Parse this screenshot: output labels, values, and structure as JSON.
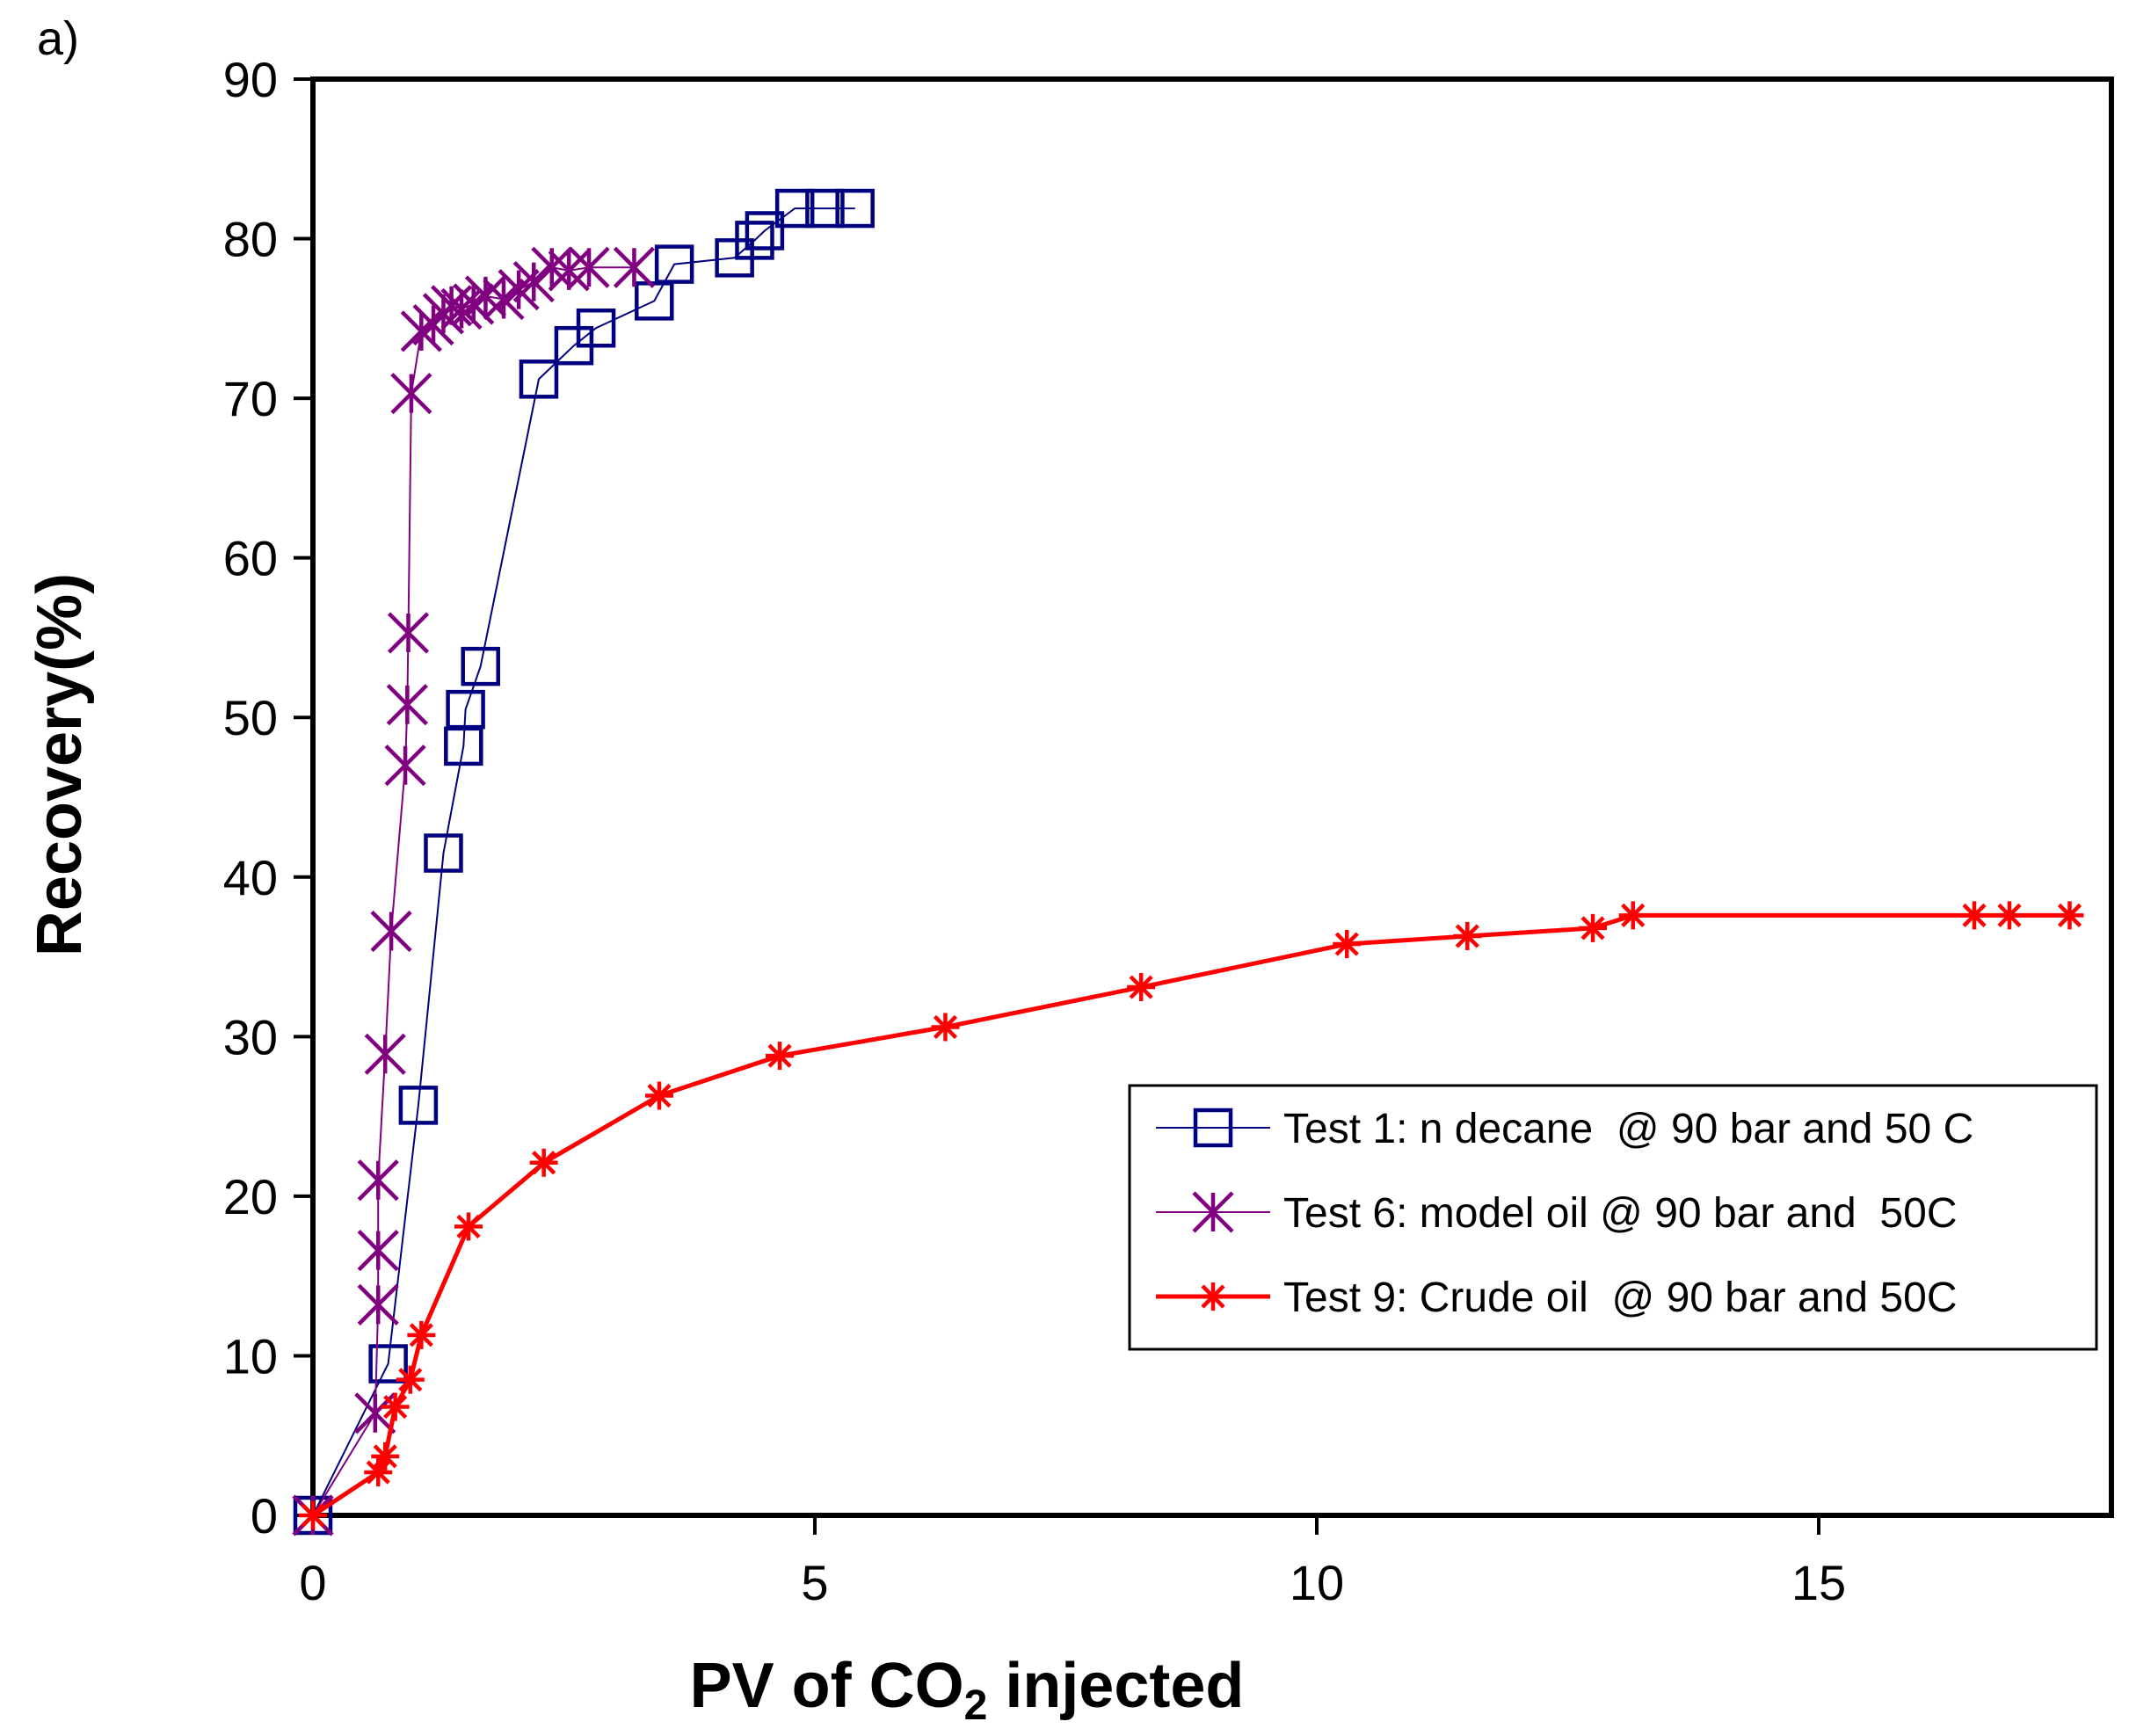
{
  "chart_data": {
    "type": "line",
    "panel_label": "a)",
    "xlabel": {
      "main": "PV of CO",
      "sub": "2",
      "tail": " injected"
    },
    "ylabel": "Recovery(%)",
    "xlim": [
      0,
      18
    ],
    "ylim": [
      0,
      90
    ],
    "xticks": [
      0,
      5,
      10,
      15
    ],
    "yticks": [
      0,
      10,
      20,
      30,
      40,
      50,
      60,
      70,
      80,
      90
    ],
    "grid": false,
    "legend_position": "center-right",
    "series": [
      {
        "name": "Test 1: n decane  @ 90 bar and 50 C",
        "color": "#000080",
        "marker": "square",
        "points": [
          [
            0.0,
            0.0
          ],
          [
            0.75,
            9.5
          ],
          [
            1.05,
            25.7
          ],
          [
            1.3,
            41.5
          ],
          [
            1.5,
            48.2
          ],
          [
            1.52,
            50.5
          ],
          [
            1.67,
            53.2
          ],
          [
            2.25,
            71.2
          ],
          [
            2.6,
            73.3
          ],
          [
            2.82,
            74.4
          ],
          [
            3.4,
            76.1
          ],
          [
            3.6,
            78.4
          ],
          [
            4.2,
            78.8
          ],
          [
            4.4,
            79.9
          ],
          [
            4.5,
            80.5
          ],
          [
            4.8,
            81.9
          ],
          [
            5.1,
            81.9
          ],
          [
            5.4,
            81.9
          ]
        ]
      },
      {
        "name": "Test 6: model oil @ 90 bar and  50C",
        "color": "#800080",
        "marker": "star",
        "points": [
          [
            0.0,
            0.0
          ],
          [
            0.62,
            6.4
          ],
          [
            0.65,
            13.2
          ],
          [
            0.65,
            16.6
          ],
          [
            0.65,
            21.0
          ],
          [
            0.72,
            28.9
          ],
          [
            0.78,
            36.6
          ],
          [
            0.92,
            47.0
          ],
          [
            0.94,
            50.8
          ],
          [
            0.95,
            55.3
          ],
          [
            0.98,
            70.3
          ],
          [
            1.08,
            74.2
          ],
          [
            1.2,
            74.6
          ],
          [
            1.3,
            75.3
          ],
          [
            1.38,
            75.8
          ],
          [
            1.48,
            75.6
          ],
          [
            1.6,
            75.9
          ],
          [
            1.72,
            76.4
          ],
          [
            1.9,
            76.2
          ],
          [
            2.05,
            76.8
          ],
          [
            2.2,
            77.3
          ],
          [
            2.38,
            78.2
          ],
          [
            2.55,
            78.0
          ],
          [
            2.75,
            78.2
          ],
          [
            3.2,
            78.2
          ]
        ]
      },
      {
        "name": "Test 9: Crude oil  @ 90 bar and 50C",
        "color": "#FF0000",
        "marker": "asterisk",
        "points": [
          [
            0.0,
            0.0
          ],
          [
            0.65,
            2.7
          ],
          [
            0.72,
            3.7
          ],
          [
            0.82,
            6.8
          ],
          [
            0.97,
            8.5
          ],
          [
            1.08,
            11.3
          ],
          [
            1.55,
            18.1
          ],
          [
            2.3,
            22.1
          ],
          [
            3.45,
            26.3
          ],
          [
            4.65,
            28.8
          ],
          [
            6.3,
            30.6
          ],
          [
            8.25,
            33.1
          ],
          [
            10.3,
            35.8
          ],
          [
            11.5,
            36.3
          ],
          [
            12.75,
            36.8
          ],
          [
            13.15,
            37.6
          ],
          [
            16.55,
            37.6
          ],
          [
            16.9,
            37.6
          ],
          [
            17.5,
            37.6
          ]
        ]
      }
    ]
  }
}
